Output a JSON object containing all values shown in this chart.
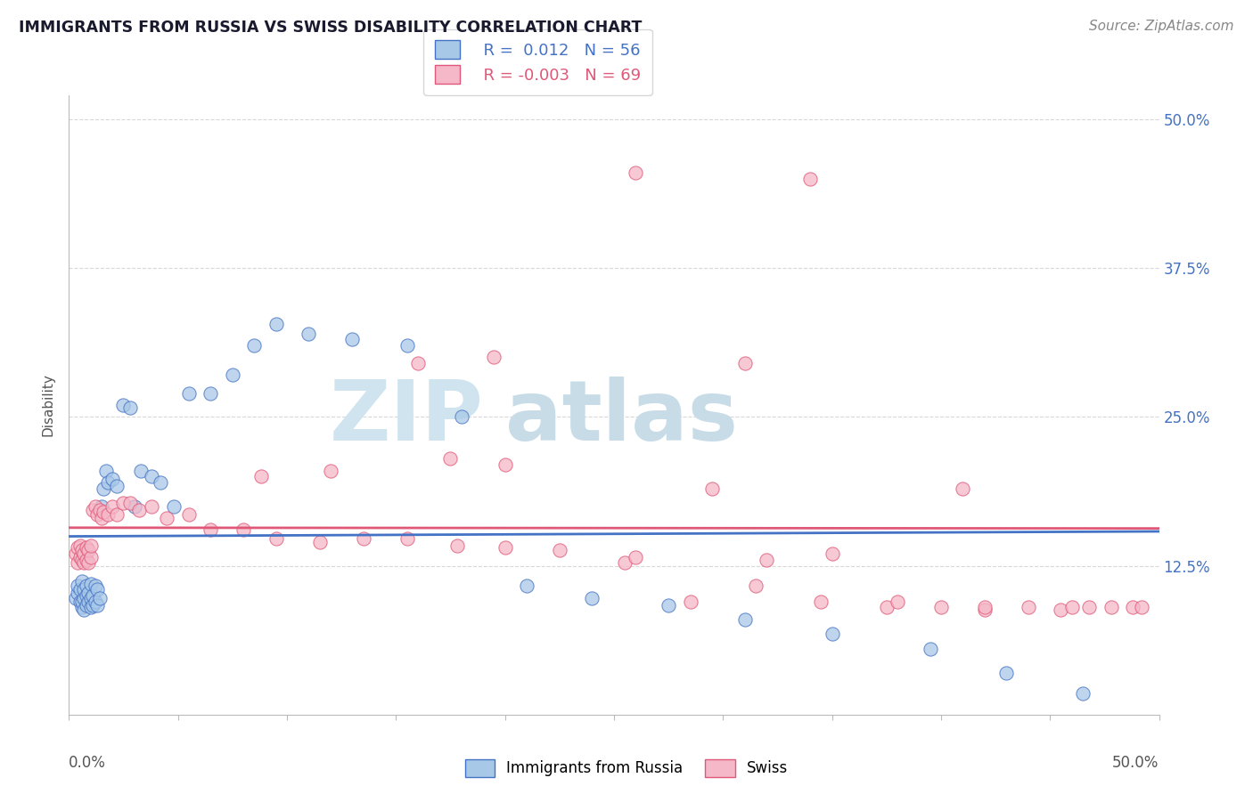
{
  "title": "IMMIGRANTS FROM RUSSIA VS SWISS DISABILITY CORRELATION CHART",
  "source": "Source: ZipAtlas.com",
  "ylabel": "Disability",
  "xmin": 0.0,
  "xmax": 0.5,
  "ymin": 0.0,
  "ymax": 0.52,
  "ytick_vals": [
    0.125,
    0.25,
    0.375,
    0.5
  ],
  "ytick_labels": [
    "12.5%",
    "25.0%",
    "37.5%",
    "50.0%"
  ],
  "r1": 0.012,
  "n1": 56,
  "r2": -0.003,
  "n2": 69,
  "color_blue": "#a8c8e8",
  "color_pink": "#f4b8c8",
  "line_blue": "#4472c4",
  "line_pink": "#e05878",
  "grid_color": "#d8d8d8",
  "watermark_color": "#d0e4f0",
  "title_color": "#1a1a2e",
  "source_color": "#888888",
  "ytick_color": "#4472c4",
  "legend_r1": "R =  0.012",
  "legend_n1": "N = 56",
  "legend_r2": "R = -0.003",
  "legend_n2": "N = 69",
  "blue_x": [
    0.003,
    0.004,
    0.004,
    0.005,
    0.005,
    0.006,
    0.006,
    0.006,
    0.007,
    0.007,
    0.007,
    0.008,
    0.008,
    0.008,
    0.009,
    0.009,
    0.01,
    0.01,
    0.01,
    0.011,
    0.011,
    0.012,
    0.012,
    0.013,
    0.013,
    0.014,
    0.015,
    0.016,
    0.017,
    0.018,
    0.02,
    0.022,
    0.025,
    0.028,
    0.03,
    0.033,
    0.038,
    0.042,
    0.048,
    0.055,
    0.065,
    0.075,
    0.085,
    0.095,
    0.11,
    0.13,
    0.155,
    0.18,
    0.21,
    0.24,
    0.275,
    0.31,
    0.35,
    0.395,
    0.43,
    0.465
  ],
  "blue_y": [
    0.098,
    0.102,
    0.108,
    0.095,
    0.105,
    0.09,
    0.095,
    0.112,
    0.088,
    0.098,
    0.105,
    0.092,
    0.1,
    0.108,
    0.095,
    0.102,
    0.09,
    0.098,
    0.11,
    0.092,
    0.1,
    0.095,
    0.108,
    0.092,
    0.105,
    0.098,
    0.175,
    0.19,
    0.205,
    0.195,
    0.198,
    0.192,
    0.26,
    0.258,
    0.175,
    0.205,
    0.2,
    0.195,
    0.175,
    0.27,
    0.27,
    0.285,
    0.31,
    0.328,
    0.32,
    0.315,
    0.31,
    0.25,
    0.108,
    0.098,
    0.092,
    0.08,
    0.068,
    0.055,
    0.035,
    0.018
  ],
  "pink_x": [
    0.003,
    0.004,
    0.004,
    0.005,
    0.005,
    0.006,
    0.006,
    0.007,
    0.007,
    0.008,
    0.008,
    0.009,
    0.009,
    0.01,
    0.01,
    0.011,
    0.012,
    0.013,
    0.014,
    0.015,
    0.016,
    0.018,
    0.02,
    0.022,
    0.025,
    0.028,
    0.032,
    0.038,
    0.045,
    0.055,
    0.065,
    0.08,
    0.095,
    0.115,
    0.135,
    0.155,
    0.178,
    0.2,
    0.225,
    0.255,
    0.285,
    0.315,
    0.345,
    0.375,
    0.4,
    0.42,
    0.44,
    0.455,
    0.468,
    0.478,
    0.488,
    0.492,
    0.31,
    0.16,
    0.195,
    0.26,
    0.34,
    0.295,
    0.41,
    0.35,
    0.088,
    0.12,
    0.175,
    0.2,
    0.26,
    0.32,
    0.38,
    0.42,
    0.46
  ],
  "pink_y": [
    0.135,
    0.128,
    0.14,
    0.132,
    0.142,
    0.13,
    0.138,
    0.128,
    0.135,
    0.13,
    0.14,
    0.128,
    0.138,
    0.132,
    0.142,
    0.172,
    0.175,
    0.168,
    0.172,
    0.165,
    0.17,
    0.168,
    0.175,
    0.168,
    0.178,
    0.178,
    0.172,
    0.175,
    0.165,
    0.168,
    0.155,
    0.155,
    0.148,
    0.145,
    0.148,
    0.148,
    0.142,
    0.14,
    0.138,
    0.128,
    0.095,
    0.108,
    0.095,
    0.09,
    0.09,
    0.088,
    0.09,
    0.088,
    0.09,
    0.09,
    0.09,
    0.09,
    0.295,
    0.295,
    0.3,
    0.455,
    0.45,
    0.19,
    0.19,
    0.135,
    0.2,
    0.205,
    0.215,
    0.21,
    0.132,
    0.13,
    0.095,
    0.09,
    0.09
  ]
}
